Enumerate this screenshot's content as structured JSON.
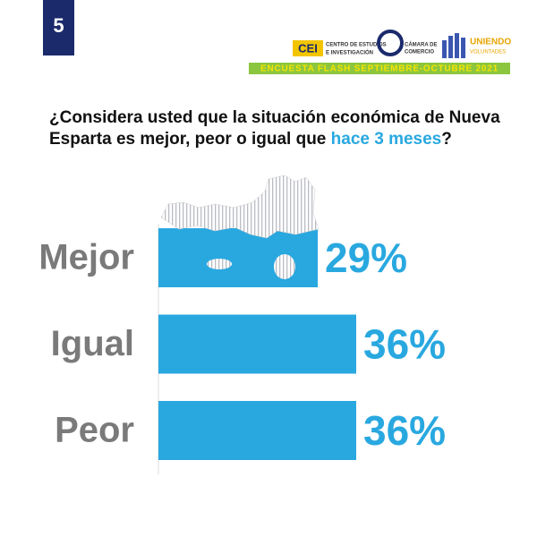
{
  "badge": "5",
  "logos": {
    "cei_mark": "CEI",
    "cei_text": [
      "CENTRO DE ESTUDIOS",
      "E INVESTIGACIÓN"
    ],
    "camara_text": [
      "CÁMARA DE",
      "COMERCIO"
    ],
    "uniendo_text": [
      "UNIENDO",
      "VOLUNTADES"
    ]
  },
  "banner": "ENCUESTA FLASH SEPTIEMBRE-OCTUBRE 2021",
  "chart_data": {
    "type": "hbar",
    "title": [
      "¿Considera usted que la situación económica de Nueva",
      "Esparta  es mejor, peor o igual que"
    ],
    "title_highlight": "hace 3 meses",
    "title_end": "?",
    "categories": [
      "Mejor",
      "Igual",
      "Peor"
    ],
    "values": [
      29,
      36,
      36
    ],
    "value_labels": [
      "29%",
      "36%",
      "36%"
    ],
    "color": "#29a8e0"
  }
}
